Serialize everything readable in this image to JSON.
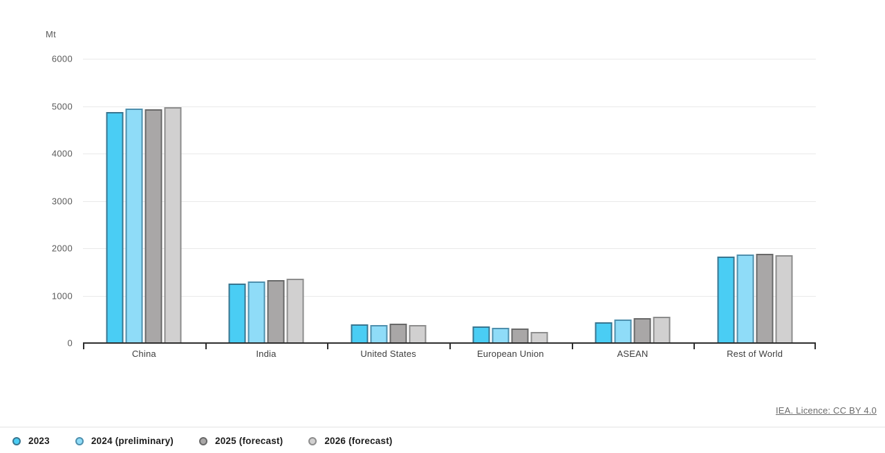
{
  "chart": {
    "unit_label": "Mt",
    "source_text": "IEA. Licence: CC BY 4.0"
  },
  "chart_data": {
    "type": "bar",
    "title": "",
    "unit": "Mt",
    "xlabel": "",
    "ylabel": "Mt",
    "ylim": [
      0,
      6000
    ],
    "ytick_step": 1000,
    "grid": true,
    "legend_position": "bottom",
    "categories": [
      "China",
      "India",
      "United States",
      "European Union",
      "ASEAN",
      "Rest of World"
    ],
    "series": [
      {
        "name": "2023",
        "fill": "#4ACDF4",
        "stroke": "#38758F",
        "values": [
          4880,
          1260,
          400,
          355,
          445,
          1820
        ]
      },
      {
        "name": "2024 (preliminary)",
        "fill": "#8FDCF8",
        "stroke": "#4E8FAD",
        "values": [
          4950,
          1300,
          385,
          320,
          490,
          1875
        ]
      },
      {
        "name": "2025 (forecast)",
        "fill": "#A9A7A7",
        "stroke": "#686868",
        "values": [
          4930,
          1325,
          415,
          300,
          525,
          1885
        ]
      },
      {
        "name": "2026 (forecast)",
        "fill": "#D1D0D0",
        "stroke": "#8C8C8C",
        "values": [
          4975,
          1360,
          385,
          240,
          560,
          1850
        ]
      }
    ]
  }
}
